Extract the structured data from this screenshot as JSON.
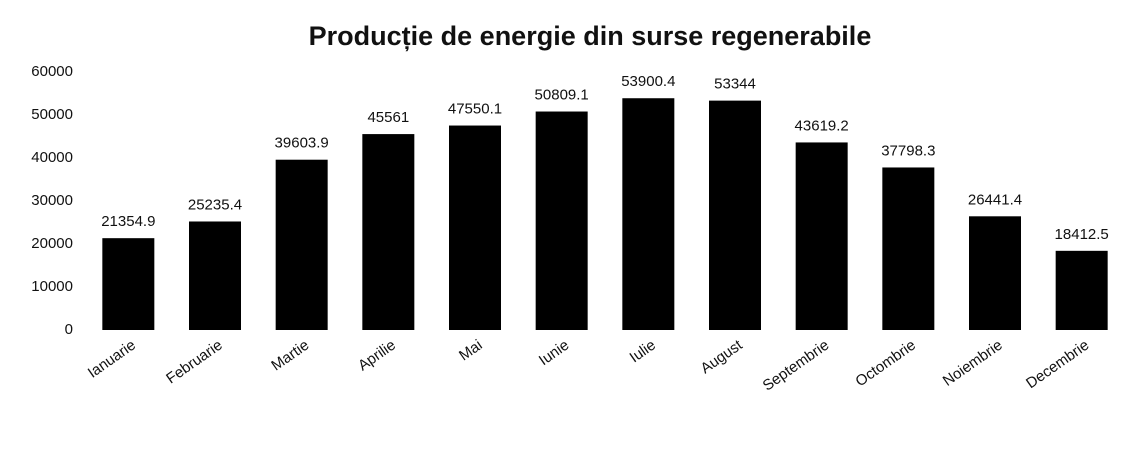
{
  "chart_data": {
    "type": "bar",
    "title": "Producție de energie din surse regenerabile",
    "categories": [
      "Ianuarie",
      "Februarie",
      "Martie",
      "Aprilie",
      "Mai",
      "Iunie",
      "Iulie",
      "August",
      "Septembrie",
      "Octombrie",
      "Noiembrie",
      "Decembrie"
    ],
    "values": [
      21354.9,
      25235.4,
      39603.9,
      45561,
      47550.1,
      50809.1,
      53900.4,
      53344,
      43619.2,
      37798.3,
      26441.4,
      18412.5
    ],
    "color": "#000000",
    "ylim": [
      0,
      60000
    ],
    "yticks": [
      0,
      10000,
      20000,
      30000,
      40000,
      50000,
      60000
    ],
    "grid": false
  }
}
